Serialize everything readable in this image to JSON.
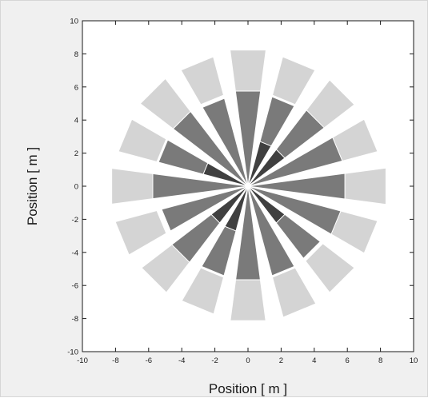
{
  "chart_data": {
    "type": "polar-bar",
    "title": "",
    "xlabel": "Position [ m ]",
    "ylabel": "Position [ m ]",
    "xlim": [
      -10,
      10
    ],
    "ylim": [
      -10,
      10
    ],
    "xticks": [
      -10,
      -8,
      -6,
      -4,
      -2,
      0,
      2,
      4,
      6,
      8,
      10
    ],
    "yticks": [
      -10,
      -8,
      -6,
      -4,
      -2,
      0,
      2,
      4,
      6,
      8,
      10
    ],
    "grid": false,
    "center": [
      0,
      0
    ],
    "sector_count": 16,
    "sector_width_deg": 15,
    "angles_deg": [
      90,
      67.5,
      45,
      22.5,
      0,
      -22.5,
      -45,
      -67.5,
      -90,
      -112.5,
      -135,
      -157.5,
      180,
      157.5,
      135,
      112.5
    ],
    "layers": [
      {
        "color": "#d4d4d4",
        "inner_radius": 5.7,
        "radius": [
          8.3,
          8.1,
          8.1,
          8.1,
          8.4,
          8.1,
          8.1,
          8.2,
          8.2,
          8.0,
          8.1,
          8.3,
          8.3,
          8.1,
          8.2,
          8.1
        ]
      },
      {
        "color": "#7a7a7a",
        "inner_radius": 0,
        "radius": [
          5.8,
          5.6,
          5.8,
          5.9,
          5.9,
          5.8,
          5.5,
          5.6,
          5.7,
          5.6,
          5.8,
          5.4,
          5.8,
          5.6,
          5.7,
          5.5
        ]
      },
      {
        "color": "#404040",
        "inner_radius": 0,
        "radius": [
          0,
          2.8,
          2.8,
          0,
          0,
          0,
          2.8,
          0,
          0,
          2.8,
          2.8,
          0,
          0,
          2.8,
          0,
          0
        ]
      }
    ]
  }
}
